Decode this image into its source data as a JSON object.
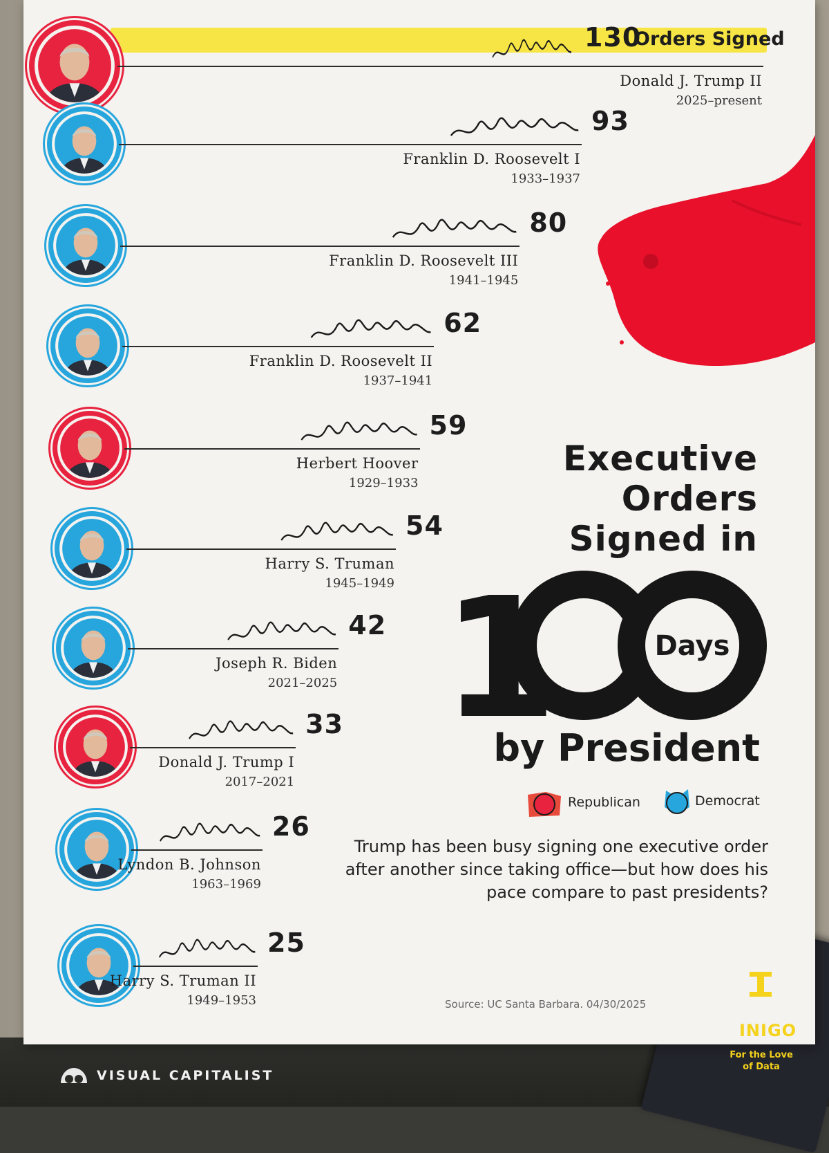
{
  "chart_data": {
    "type": "bar",
    "title": "Executive Orders Signed in 100 Days by President",
    "title_lines": [
      "Executive",
      "Orders",
      "Signed in"
    ],
    "title_number": "100",
    "title_days": "Days",
    "title_tail": "by President",
    "subtitle": "Trump has been busy signing one executive order after another since taking office—but how does his pace compare to past presidents?",
    "legend": [
      {
        "label": "Republican",
        "color": "#e8233f"
      },
      {
        "label": "Democrat",
        "color": "#27a6dd"
      }
    ],
    "series": [
      {
        "name": "Donald J. Trump II",
        "years": "2025–present",
        "value": 130,
        "label_suffix": "Orders Signed",
        "party": "Republican",
        "highlight": true
      },
      {
        "name": "Franklin D. Roosevelt I",
        "years": "1933–1937",
        "value": 93,
        "party": "Democrat"
      },
      {
        "name": "Franklin D. Roosevelt III",
        "years": "1941–1945",
        "value": 80,
        "party": "Democrat"
      },
      {
        "name": "Franklin D. Roosevelt II",
        "years": "1937–1941",
        "value": 62,
        "party": "Democrat"
      },
      {
        "name": "Herbert Hoover",
        "years": "1929–1933",
        "value": 59,
        "party": "Republican"
      },
      {
        "name": "Harry S. Truman",
        "years": "1945–1949",
        "value": 54,
        "party": "Democrat"
      },
      {
        "name": "Joseph R. Biden",
        "years": "2021–2025",
        "value": 42,
        "party": "Democrat"
      },
      {
        "name": "Donald J. Trump I",
        "years": "2017–2021",
        "value": 33,
        "party": "Republican"
      },
      {
        "name": "Lyndon B. Johnson",
        "years": "1963–1969",
        "value": 26,
        "party": "Democrat"
      },
      {
        "name": "Harry S. Truman II",
        "years": "1949–1953",
        "value": 25,
        "party": "Democrat"
      }
    ]
  },
  "source": "Source: UC Santa Barbara. 04/30/2025",
  "brand": {
    "visual_capitalist": "VISUAL CAPITALIST",
    "inigo": "INIGO",
    "inigo_tagline": "For the Love of Data",
    "inigo_color": "#f5d21b",
    "highlight_color": "#f7e545",
    "ink_color": "#e8102a"
  }
}
